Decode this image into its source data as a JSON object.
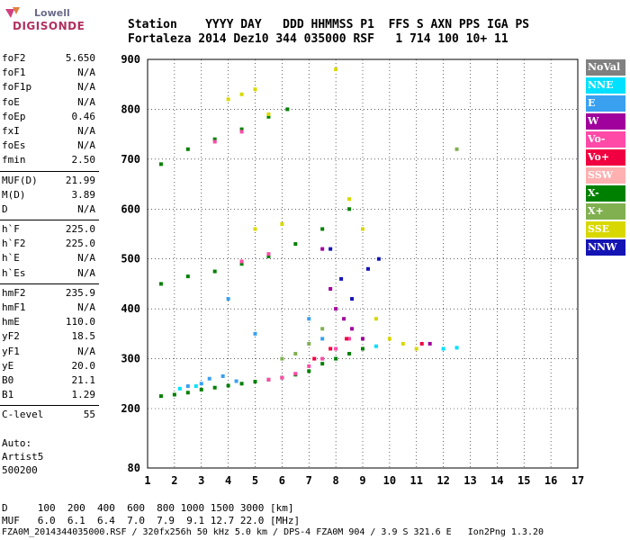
{
  "logo": {
    "line1": "Lowell",
    "line2": "DIGISONDE"
  },
  "header": {
    "line1": "Station    YYYY DAY   DDD HHMMSS P1  FFS S AXN PPS IGA PS",
    "line2": "Fortaleza 2014 Dez10 344 035000 RSF   1 714 100 10+ 11"
  },
  "params": [
    [
      [
        "foF2",
        "5.650"
      ],
      [
        "foF1",
        "N/A"
      ],
      [
        "foF1p",
        "N/A"
      ],
      [
        "foE",
        "N/A"
      ],
      [
        "foEp",
        "0.46"
      ],
      [
        "fxI",
        "N/A"
      ],
      [
        "foEs",
        "N/A"
      ],
      [
        "fmin",
        "2.50"
      ]
    ],
    [
      [
        "MUF(D)",
        "21.99"
      ],
      [
        "M(D)",
        "3.89"
      ],
      [
        "D",
        "N/A"
      ]
    ],
    [
      [
        "h`F",
        "225.0"
      ],
      [
        "h`F2",
        "225.0"
      ],
      [
        "h`E",
        "N/A"
      ],
      [
        "h`Es",
        "N/A"
      ]
    ],
    [
      [
        "hmF2",
        "235.9"
      ],
      [
        "hmF1",
        "N/A"
      ],
      [
        "hmE",
        "110.0"
      ],
      [
        "yF2",
        "18.5"
      ],
      [
        "yF1",
        "N/A"
      ],
      [
        "yE",
        "20.0"
      ],
      [
        "B0",
        "21.1"
      ],
      [
        "B1",
        "1.29"
      ]
    ],
    [
      [
        "C-level",
        "55"
      ]
    ]
  ],
  "auto": {
    "line1": "Auto:",
    "line2": "Artist5",
    "line3": "500200"
  },
  "legend": [
    {
      "label": "NoVal",
      "color": "#808080"
    },
    {
      "label": "NNE",
      "color": "#00e0ff"
    },
    {
      "label": "E",
      "color": "#3aa0f0"
    },
    {
      "label": "W",
      "color": "#a0009c"
    },
    {
      "label": "Vo-",
      "color": "#ff4aa8"
    },
    {
      "label": "Vo+",
      "color": "#f00040"
    },
    {
      "label": "SSW",
      "color": "#ffb0b0"
    },
    {
      "label": "X-",
      "color": "#008000"
    },
    {
      "label": "X+",
      "color": "#80b050"
    },
    {
      "label": "SSE",
      "color": "#d8d800"
    },
    {
      "label": "NNW",
      "color": "#1414b4"
    }
  ],
  "footer": {
    "line1": "D     100  200  400  600  800 1000 1500 3000 [km]",
    "line2": "MUF   6.0  6.1  6.4  7.0  7.9  9.1 12.7 22.0 [MHz]",
    "line3": "FZA0M_2014344035000.RSF / 320fx256h 50 kHz 5.0 km / DPS-4 FZA0M 904 / 3.9 S 321.6 E   Ion2Png 1.3.20"
  },
  "chart_data": {
    "type": "scatter",
    "title": "",
    "xlabel": "",
    "ylabel": "",
    "xlim": [
      1,
      17
    ],
    "ylim": [
      80,
      900
    ],
    "x_ticks": [
      "1",
      "2",
      "3",
      "4",
      "5",
      "6",
      "7",
      "8",
      "9",
      "10",
      "11",
      "12",
      "13",
      "14",
      "15",
      "16",
      "17"
    ],
    "y_ticks": [
      "80",
      "200",
      "300",
      "400",
      "500",
      "600",
      "700",
      "800",
      "900"
    ],
    "y_tick_values": [
      80,
      200,
      300,
      400,
      500,
      600,
      700,
      800,
      900
    ],
    "grid": true,
    "series": [
      {
        "name": "X-",
        "color": "#008000",
        "points": [
          [
            1.5,
            225
          ],
          [
            2.0,
            228
          ],
          [
            2.5,
            232
          ],
          [
            3.0,
            238
          ],
          [
            3.5,
            242
          ],
          [
            4.0,
            246
          ],
          [
            4.5,
            250
          ],
          [
            5.0,
            254
          ],
          [
            5.5,
            258
          ],
          [
            6.0,
            262
          ],
          [
            6.5,
            268
          ],
          [
            7.0,
            275
          ],
          [
            7.5,
            290
          ],
          [
            8.0,
            300
          ],
          [
            8.5,
            310
          ],
          [
            9.0,
            320
          ],
          [
            1.5,
            450
          ],
          [
            2.5,
            465
          ],
          [
            3.5,
            475
          ],
          [
            4.5,
            490
          ],
          [
            5.5,
            505
          ],
          [
            6.5,
            530
          ],
          [
            7.5,
            560
          ],
          [
            8.5,
            600
          ],
          [
            1.5,
            690
          ],
          [
            2.5,
            720
          ],
          [
            3.5,
            740
          ],
          [
            4.5,
            760
          ],
          [
            5.5,
            785
          ],
          [
            6.2,
            800
          ]
        ]
      },
      {
        "name": "E",
        "color": "#3aa0f0",
        "points": [
          [
            2.5,
            245
          ],
          [
            3.0,
            250
          ],
          [
            3.3,
            260
          ],
          [
            3.8,
            265
          ],
          [
            4.3,
            255
          ],
          [
            5.0,
            350
          ],
          [
            4.0,
            420
          ],
          [
            7.0,
            380
          ],
          [
            7.5,
            340
          ]
        ]
      },
      {
        "name": "Vo-",
        "color": "#ff4aa8",
        "points": [
          [
            5.5,
            258
          ],
          [
            6.0,
            262
          ],
          [
            6.5,
            270
          ],
          [
            7.0,
            285
          ],
          [
            7.5,
            300
          ],
          [
            8.0,
            320
          ],
          [
            8.5,
            340
          ],
          [
            4.5,
            495
          ],
          [
            5.5,
            510
          ],
          [
            3.5,
            735
          ],
          [
            4.5,
            755
          ]
        ]
      },
      {
        "name": "SSE",
        "color": "#d8d800",
        "points": [
          [
            4.0,
            820
          ],
          [
            4.5,
            830
          ],
          [
            5.0,
            840
          ],
          [
            5.5,
            790
          ],
          [
            5.0,
            560
          ],
          [
            6.0,
            570
          ],
          [
            8.5,
            620
          ],
          [
            9.5,
            380
          ],
          [
            10.0,
            340
          ],
          [
            10.5,
            330
          ],
          [
            11.0,
            320
          ],
          [
            9.0,
            560
          ],
          [
            8.0,
            880
          ]
        ]
      },
      {
        "name": "W",
        "color": "#a0009c",
        "points": [
          [
            8.0,
            400
          ],
          [
            8.3,
            380
          ],
          [
            8.6,
            360
          ],
          [
            7.5,
            520
          ],
          [
            9.0,
            340
          ],
          [
            11.5,
            330
          ],
          [
            7.8,
            440
          ]
        ]
      },
      {
        "name": "NNE",
        "color": "#00e0ff",
        "points": [
          [
            2.2,
            240
          ],
          [
            2.8,
            245
          ],
          [
            9.5,
            325
          ],
          [
            12.0,
            320
          ],
          [
            12.5,
            322
          ]
        ]
      },
      {
        "name": "NNW",
        "color": "#1414b4",
        "points": [
          [
            7.8,
            520
          ],
          [
            8.2,
            460
          ],
          [
            8.6,
            420
          ],
          [
            9.2,
            480
          ],
          [
            9.6,
            500
          ]
        ]
      },
      {
        "name": "X+",
        "color": "#80b050",
        "points": [
          [
            6.0,
            300
          ],
          [
            6.5,
            310
          ],
          [
            7.0,
            330
          ],
          [
            7.5,
            360
          ],
          [
            12.5,
            720
          ]
        ]
      },
      {
        "name": "Vo+",
        "color": "#f00040",
        "points": [
          [
            7.2,
            300
          ],
          [
            7.8,
            320
          ],
          [
            8.4,
            340
          ],
          [
            11.2,
            330
          ]
        ]
      }
    ]
  }
}
